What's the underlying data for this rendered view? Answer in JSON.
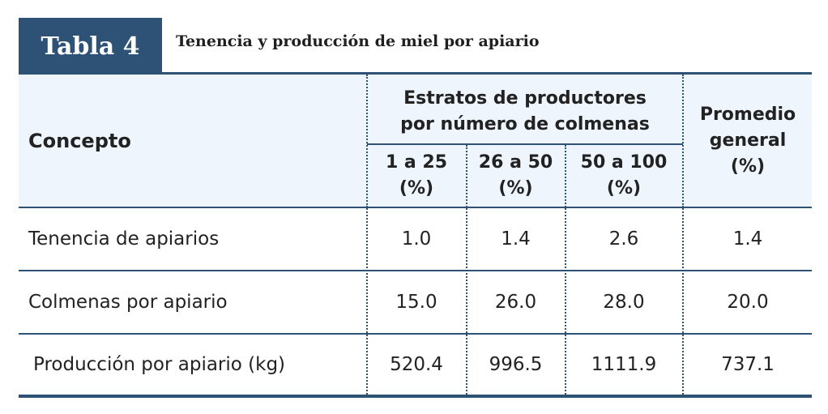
{
  "table_tag": "Tabla 4",
  "caption": "Tenencia y producción de miel por apiario",
  "header": {
    "concept": "Concepto",
    "strata_line1": "Estratos de productores",
    "strata_line2": "por número de colmenas",
    "col1_line1": "1 a 25",
    "col1_line2": "(%)",
    "col2_line1": "26 a 50",
    "col2_line2": "(%)",
    "col3_line1": "50 a 100",
    "col3_line2": "(%)",
    "avg_line1": "Promedio",
    "avg_line2": "general",
    "avg_line3": "(%)"
  },
  "rows": [
    {
      "label": "Tenencia de apiarios",
      "c1": "1.0",
      "c2": "1.4",
      "c3": "2.6",
      "avg": "1.4"
    },
    {
      "label": "Colmenas por apiario",
      "c1": "15.0",
      "c2": "26.0",
      "c3": "28.0",
      "avg": "20.0"
    },
    {
      "label": "Producción por apiario (kg)",
      "c1": "520.4",
      "c2": "996.5",
      "c3": "1111.9",
      "avg": "737.1"
    }
  ]
}
